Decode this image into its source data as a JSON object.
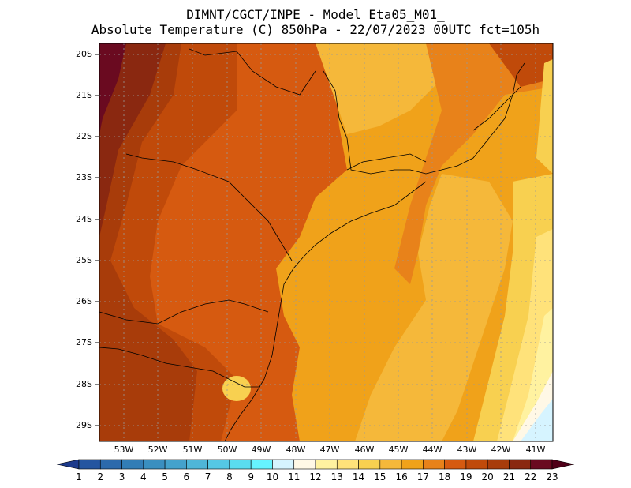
{
  "header": {
    "line1": "DIMNT/CGCT/INPE -  Model Eta05_M01_",
    "line2": "Absolute Temperature (C) 850hPa -  22/07/2023 00UTC fct=105h"
  },
  "map": {
    "lat_labels": [
      "20S",
      "21S",
      "22S",
      "23S",
      "24S",
      "25S",
      "26S",
      "27S",
      "28S",
      "29S"
    ],
    "lon_labels": [
      "53W",
      "52W",
      "51W",
      "50W",
      "49W",
      "48W",
      "47W",
      "46W",
      "45W",
      "44W",
      "43W",
      "42W",
      "41W"
    ],
    "lat_range": [
      -29.4,
      -19.8
    ],
    "lon_range": [
      -53.7,
      -40.4
    ]
  },
  "colorbar": {
    "labels": [
      "1",
      "2",
      "3",
      "4",
      "5",
      "6",
      "7",
      "8",
      "9",
      "10",
      "11",
      "12",
      "13",
      "14",
      "15",
      "16",
      "17",
      "18",
      "19",
      "20",
      "21",
      "22",
      "23"
    ],
    "colors": [
      "#1c3a8c",
      "#2455a0",
      "#2c6aac",
      "#327db6",
      "#3a8fc0",
      "#44a2cc",
      "#4fb6d8",
      "#55c8e4",
      "#5adcf0",
      "#66f4ff",
      "#d6f4ff",
      "#fff8e6",
      "#fff2a0",
      "#ffe27a",
      "#f8d050",
      "#f5b83a",
      "#f0a21a",
      "#e8821a",
      "#d65a10",
      "#c04a0a",
      "#a83c0a",
      "#8a2810",
      "#6a0a20",
      "#500018"
    ]
  }
}
